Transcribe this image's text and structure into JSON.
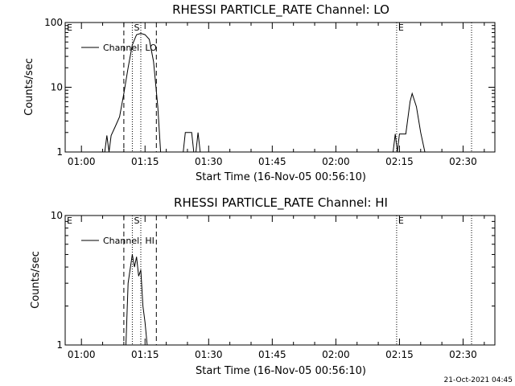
{
  "chart_data": [
    {
      "type": "line",
      "title": "RHESSI PARTICLE_RATE Channel: LO",
      "xlabel": "Start Time (16-Nov-05 00:56:10)",
      "ylabel": "Counts/sec",
      "yscale": "log",
      "ylim": [
        1,
        100
      ],
      "y_ticks": [
        "1",
        "10",
        "100"
      ],
      "x_ticks": [
        "01:00",
        "01:15",
        "01:30",
        "01:45",
        "02:00",
        "02:15",
        "02:30"
      ],
      "xlim": [
        "00:56:10",
        "02:37:30"
      ],
      "legend": "Channel: LO",
      "legend_placement": "top-left",
      "grid": false,
      "series": [
        {
          "name": "Channel: LO",
          "points": [
            [
              "01:05:30",
              1
            ],
            [
              "01:06:00",
              1.8
            ],
            [
              "01:06:30",
              1
            ],
            [
              "01:07:00",
              1.8
            ],
            [
              "01:08:00",
              2.5
            ],
            [
              "01:09:00",
              3.5
            ],
            [
              "01:10:00",
              8
            ],
            [
              "01:11:00",
              20
            ],
            [
              "01:12:00",
              45
            ],
            [
              "01:13:00",
              65
            ],
            [
              "01:14:00",
              68
            ],
            [
              "01:15:00",
              65
            ],
            [
              "01:16:00",
              55
            ],
            [
              "01:17:00",
              25
            ],
            [
              "01:18:00",
              5
            ],
            [
              "01:18:40",
              1
            ],
            [
              "01:24:00",
              1
            ],
            [
              "01:24:30",
              2
            ],
            [
              "01:26:00",
              2
            ],
            [
              "01:26:30",
              1
            ],
            [
              "01:27:00",
              1
            ],
            [
              "01:27:30",
              2
            ],
            [
              "01:28:00",
              1
            ],
            [
              "02:13:30",
              1
            ],
            [
              "02:14:00",
              1.9
            ],
            [
              "02:14:30",
              1
            ],
            [
              "02:15:00",
              1.9
            ],
            [
              "02:16:30",
              1.9
            ],
            [
              "02:17:30",
              6
            ],
            [
              "02:18:00",
              8
            ],
            [
              "02:19:00",
              5
            ],
            [
              "02:20:00",
              2
            ],
            [
              "02:21:00",
              1
            ]
          ]
        }
      ],
      "markers": [
        {
          "label": "E",
          "time": "00:56:10",
          "style": "dotted",
          "labeled": true
        },
        {
          "label": "S",
          "time": "01:12:00",
          "style": "dotted",
          "labeled": true
        },
        {
          "label": "",
          "time": "01:10:00",
          "style": "dashed",
          "labeled": false
        },
        {
          "label": "",
          "time": "01:17:40",
          "style": "dashed",
          "labeled": false
        },
        {
          "label": "",
          "time": "01:14:00",
          "style": "dotted",
          "labeled": false
        },
        {
          "label": "E",
          "time": "02:14:20",
          "style": "dotted",
          "labeled": true
        },
        {
          "label": "",
          "time": "02:32:00",
          "style": "dotted",
          "labeled": false
        }
      ]
    },
    {
      "type": "line",
      "title": "RHESSI PARTICLE_RATE Channel: HI",
      "xlabel": "Start Time (16-Nov-05 00:56:10)",
      "ylabel": "Counts/sec",
      "yscale": "log",
      "ylim": [
        1,
        10
      ],
      "y_ticks": [
        "1",
        "10"
      ],
      "x_ticks": [
        "01:00",
        "01:15",
        "01:30",
        "01:45",
        "02:00",
        "02:15",
        "02:30"
      ],
      "xlim": [
        "00:56:10",
        "02:37:30"
      ],
      "legend": "Channel: HI",
      "legend_placement": "top-left",
      "grid": false,
      "series": [
        {
          "name": "Channel: HI",
          "points": [
            [
              "01:10:30",
              1
            ],
            [
              "01:11:00",
              3
            ],
            [
              "01:12:00",
              5
            ],
            [
              "01:12:30",
              4
            ],
            [
              "01:13:00",
              4.8
            ],
            [
              "01:13:30",
              3.4
            ],
            [
              "01:14:00",
              3.8
            ],
            [
              "01:14:30",
              2
            ],
            [
              "01:15:00",
              1.5
            ],
            [
              "01:15:30",
              1
            ]
          ]
        }
      ],
      "markers": [
        {
          "label": "E",
          "time": "00:56:10",
          "style": "dotted",
          "labeled": true
        },
        {
          "label": "S",
          "time": "01:12:00",
          "style": "dotted",
          "labeled": true
        },
        {
          "label": "",
          "time": "01:10:00",
          "style": "dashed",
          "labeled": false
        },
        {
          "label": "",
          "time": "01:17:40",
          "style": "dashed",
          "labeled": false
        },
        {
          "label": "",
          "time": "01:14:00",
          "style": "dotted",
          "labeled": false
        },
        {
          "label": "E",
          "time": "02:14:20",
          "style": "dotted",
          "labeled": true
        },
        {
          "label": "",
          "time": "02:32:00",
          "style": "dotted",
          "labeled": false
        }
      ]
    }
  ],
  "footer": {
    "date_stamp": "21-Oct-2021 04:45"
  }
}
